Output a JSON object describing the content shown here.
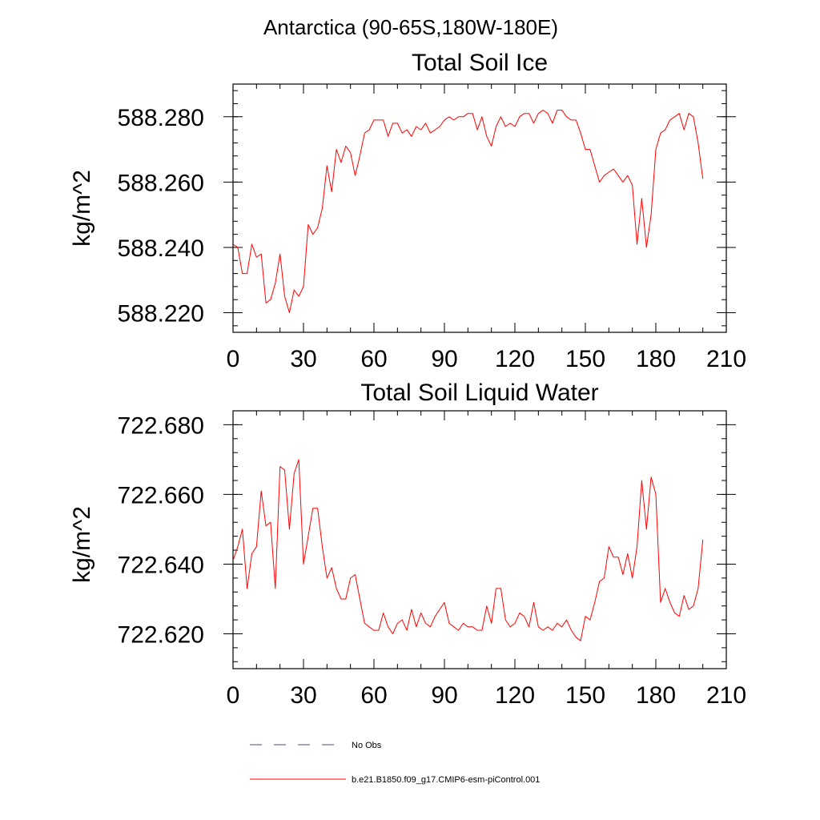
{
  "figure_title": "Antarctica (90-65S,180W-180E)",
  "legend": {
    "entries": [
      {
        "label": "No Obs",
        "color": "#4a4f7a",
        "style": "dashed"
      },
      {
        "label": "b.e21.B1850.f09_g17.CMIP6-esm-piControl.001",
        "color": "#ff0000",
        "style": "solid"
      }
    ]
  },
  "chart_data": [
    {
      "type": "line",
      "title": "Total Soil Ice",
      "xlabel": "",
      "ylabel": "kg/m^2",
      "xlim": [
        0,
        210
      ],
      "ylim": [
        588.214,
        588.29
      ],
      "x_ticks": [
        0,
        30,
        60,
        90,
        120,
        150,
        180,
        210
      ],
      "x_tick_labels": [
        "0",
        "30",
        "60",
        "90",
        "120",
        "150",
        "180",
        "210"
      ],
      "y_ticks": [
        588.22,
        588.24,
        588.26,
        588.28
      ],
      "y_tick_labels": [
        "588.220",
        "588.240",
        "588.260",
        "588.280"
      ],
      "grid": false,
      "series": [
        {
          "name": "b.e21.B1850.f09_g17.CMIP6-esm-piControl.001",
          "color": "#ff0000",
          "x": [
            0,
            2,
            4,
            6,
            8,
            10,
            12,
            14,
            16,
            18,
            20,
            22,
            24,
            26,
            28,
            30,
            32,
            34,
            36,
            38,
            40,
            42,
            44,
            46,
            48,
            50,
            52,
            54,
            56,
            58,
            60,
            62,
            64,
            66,
            68,
            70,
            72,
            74,
            76,
            78,
            80,
            82,
            84,
            86,
            88,
            90,
            92,
            94,
            96,
            98,
            100,
            102,
            104,
            106,
            108,
            110,
            112,
            114,
            116,
            118,
            120,
            122,
            124,
            126,
            128,
            130,
            132,
            134,
            136,
            138,
            140,
            142,
            144,
            146,
            148,
            150,
            152,
            154,
            156,
            158,
            160,
            162,
            164,
            166,
            168,
            170,
            172,
            174,
            176,
            178,
            180,
            182,
            184,
            186,
            188,
            190,
            192,
            194,
            196,
            198,
            200
          ],
          "y": [
            588.241,
            588.24,
            588.232,
            588.232,
            588.241,
            588.237,
            588.238,
            588.223,
            588.224,
            588.229,
            588.238,
            588.225,
            588.22,
            588.227,
            588.225,
            588.228,
            588.247,
            588.244,
            588.246,
            588.252,
            588.265,
            588.257,
            588.27,
            588.266,
            588.271,
            588.269,
            588.262,
            588.268,
            588.275,
            588.276,
            588.279,
            588.279,
            588.279,
            588.274,
            588.278,
            588.278,
            588.275,
            588.276,
            588.274,
            588.277,
            588.276,
            588.278,
            588.275,
            588.276,
            588.277,
            588.279,
            588.28,
            588.279,
            588.28,
            588.28,
            588.281,
            588.281,
            588.276,
            588.28,
            588.274,
            588.271,
            588.277,
            588.28,
            588.277,
            588.278,
            588.277,
            588.28,
            588.281,
            588.281,
            588.278,
            588.281,
            588.282,
            588.281,
            588.278,
            588.282,
            588.282,
            588.28,
            588.279,
            588.279,
            588.275,
            588.27,
            588.27,
            588.265,
            588.26,
            588.262,
            588.263,
            588.264,
            588.262,
            588.26,
            588.262,
            588.259,
            588.241,
            588.255,
            588.24,
            588.25,
            588.27,
            588.275,
            588.276,
            588.279,
            588.28,
            588.281,
            588.276,
            588.281,
            588.28,
            588.272,
            588.261
          ]
        }
      ]
    },
    {
      "type": "line",
      "title": "Total Soil Liquid Water",
      "xlabel": "",
      "ylabel": "kg/m^2",
      "xlim": [
        0,
        210
      ],
      "ylim": [
        722.61,
        722.684
      ],
      "x_ticks": [
        0,
        30,
        60,
        90,
        120,
        150,
        180,
        210
      ],
      "x_tick_labels": [
        "0",
        "30",
        "60",
        "90",
        "120",
        "150",
        "180",
        "210"
      ],
      "y_ticks": [
        722.62,
        722.64,
        722.66,
        722.68
      ],
      "y_tick_labels": [
        "722.620",
        "722.640",
        "722.660",
        "722.680"
      ],
      "grid": false,
      "series": [
        {
          "name": "b.e21.B1850.f09_g17.CMIP6-esm-piControl.001",
          "color": "#ff0000",
          "x": [
            0,
            2,
            4,
            6,
            8,
            10,
            12,
            14,
            16,
            18,
            20,
            22,
            24,
            26,
            28,
            30,
            32,
            34,
            36,
            38,
            40,
            42,
            44,
            46,
            48,
            50,
            52,
            54,
            56,
            58,
            60,
            62,
            64,
            66,
            68,
            70,
            72,
            74,
            76,
            78,
            80,
            82,
            84,
            86,
            88,
            90,
            92,
            94,
            96,
            98,
            100,
            102,
            104,
            106,
            108,
            110,
            112,
            114,
            116,
            118,
            120,
            122,
            124,
            126,
            128,
            130,
            132,
            134,
            136,
            138,
            140,
            142,
            144,
            146,
            148,
            150,
            152,
            154,
            156,
            158,
            160,
            162,
            164,
            166,
            168,
            170,
            172,
            174,
            176,
            178,
            180,
            182,
            184,
            186,
            188,
            190,
            192,
            194,
            196,
            198,
            200
          ],
          "y": [
            722.641,
            722.645,
            722.65,
            722.633,
            722.643,
            722.645,
            722.661,
            722.651,
            722.652,
            722.633,
            722.668,
            722.667,
            722.65,
            722.666,
            722.67,
            722.64,
            722.648,
            722.656,
            722.656,
            722.645,
            722.636,
            722.639,
            722.633,
            722.63,
            722.63,
            722.636,
            722.637,
            722.63,
            722.623,
            722.622,
            722.621,
            722.621,
            722.626,
            722.622,
            722.62,
            722.623,
            722.624,
            722.621,
            722.627,
            722.622,
            722.626,
            722.623,
            722.622,
            722.625,
            722.627,
            722.629,
            722.623,
            722.622,
            722.621,
            722.623,
            722.622,
            722.622,
            722.621,
            722.621,
            722.628,
            722.623,
            722.633,
            722.633,
            722.624,
            722.622,
            722.623,
            722.626,
            722.625,
            722.622,
            722.629,
            722.622,
            722.621,
            722.622,
            722.621,
            722.623,
            722.622,
            722.624,
            722.621,
            722.619,
            722.618,
            722.625,
            722.624,
            722.629,
            722.635,
            722.636,
            722.645,
            722.642,
            722.642,
            722.637,
            722.643,
            722.636,
            722.645,
            722.664,
            722.65,
            722.665,
            722.66,
            722.629,
            722.633,
            722.629,
            722.626,
            722.625,
            722.631,
            722.627,
            722.628,
            722.633,
            722.647
          ]
        }
      ]
    }
  ]
}
